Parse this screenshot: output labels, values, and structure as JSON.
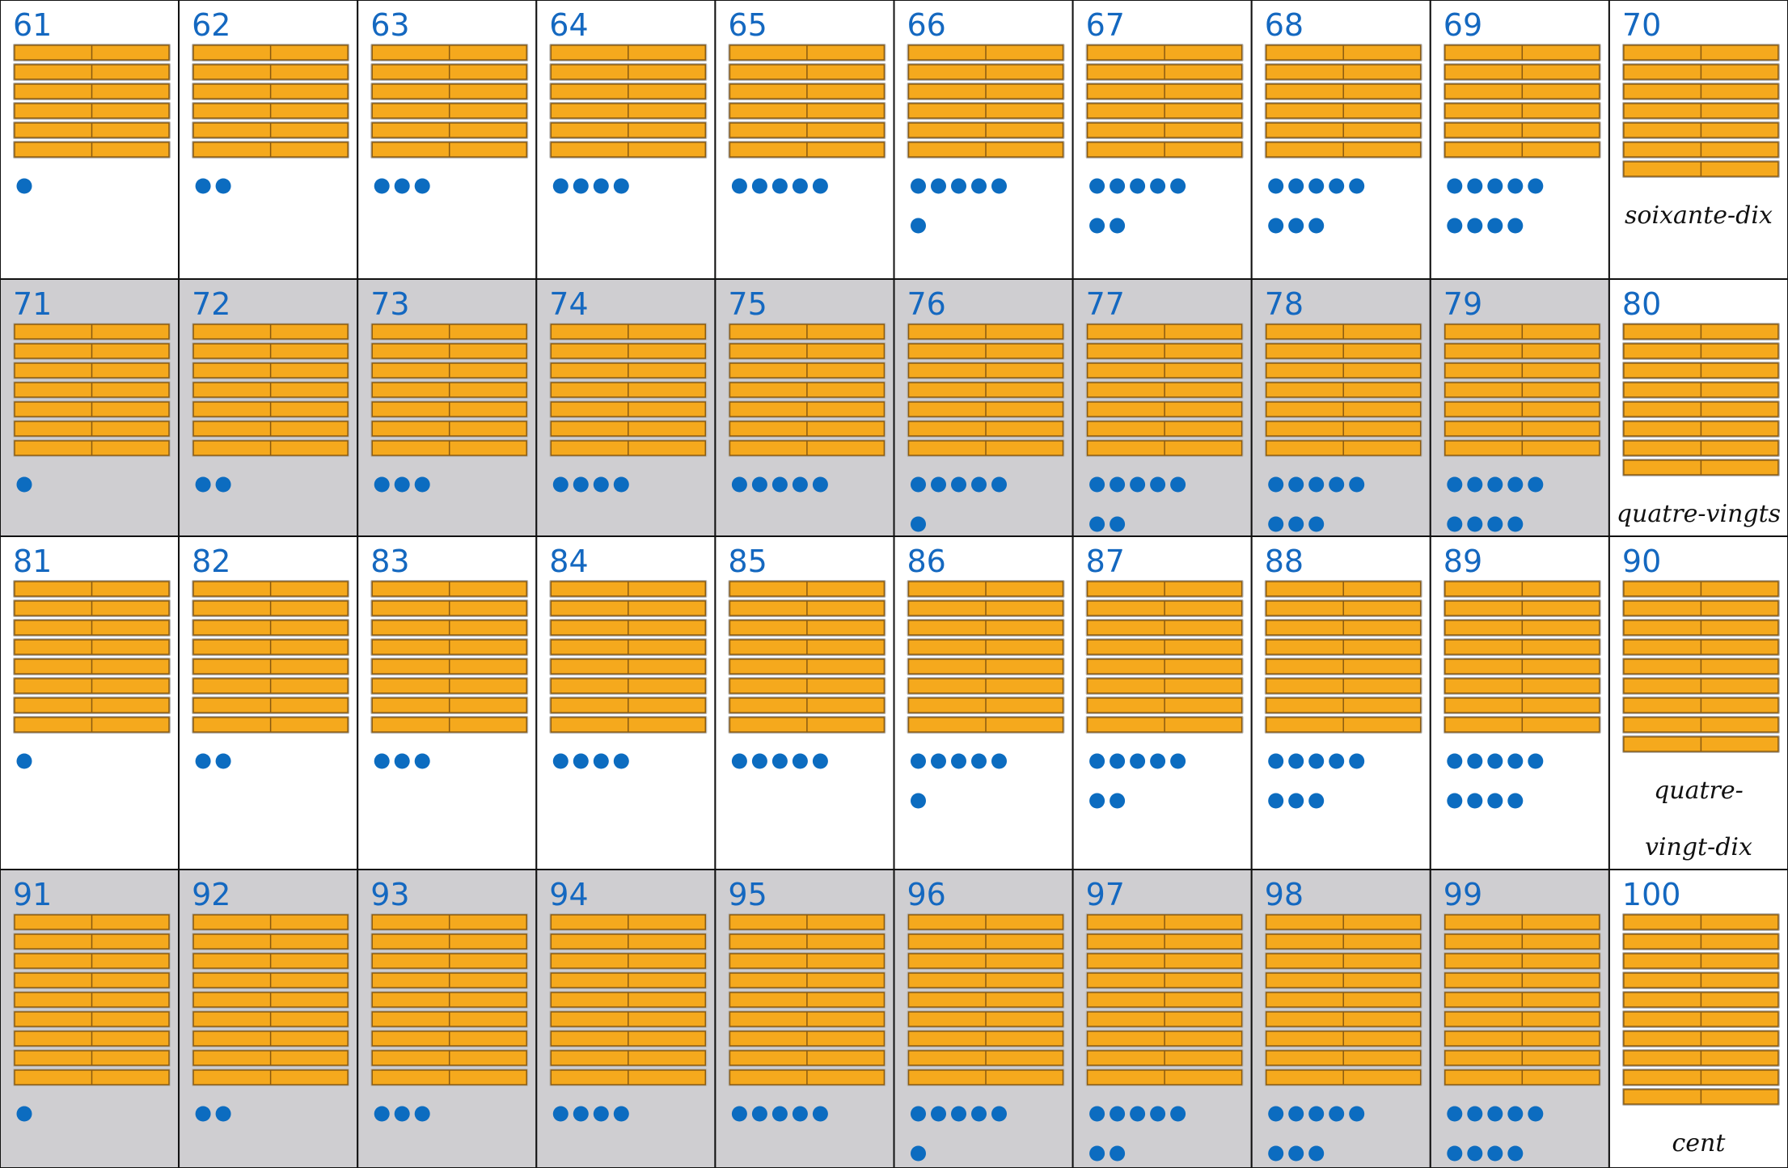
{
  "colors": {
    "number": "#1468c0",
    "bar": "#f5a91d",
    "bar_edge": "#8a5a10",
    "dot": "#0c6cc0",
    "shade": "#cfced1"
  },
  "cards": [
    {
      "number": 61,
      "tens": 6,
      "units": 1,
      "shaded": false
    },
    {
      "number": 62,
      "tens": 6,
      "units": 2,
      "shaded": false
    },
    {
      "number": 63,
      "tens": 6,
      "units": 3,
      "shaded": false
    },
    {
      "number": 64,
      "tens": 6,
      "units": 4,
      "shaded": false
    },
    {
      "number": 65,
      "tens": 6,
      "units": 5,
      "shaded": false
    },
    {
      "number": 66,
      "tens": 6,
      "units": 6,
      "shaded": false
    },
    {
      "number": 67,
      "tens": 6,
      "units": 7,
      "shaded": false
    },
    {
      "number": 68,
      "tens": 6,
      "units": 8,
      "shaded": false
    },
    {
      "number": 69,
      "tens": 6,
      "units": 9,
      "shaded": false
    },
    {
      "number": 70,
      "tens": 7,
      "units": 0,
      "shaded": false,
      "word_lines": [
        "soixante-dix"
      ]
    },
    {
      "number": 71,
      "tens": 7,
      "units": 1,
      "shaded": true
    },
    {
      "number": 72,
      "tens": 7,
      "units": 2,
      "shaded": true
    },
    {
      "number": 73,
      "tens": 7,
      "units": 3,
      "shaded": true
    },
    {
      "number": 74,
      "tens": 7,
      "units": 4,
      "shaded": true
    },
    {
      "number": 75,
      "tens": 7,
      "units": 5,
      "shaded": true
    },
    {
      "number": 76,
      "tens": 7,
      "units": 6,
      "shaded": true
    },
    {
      "number": 77,
      "tens": 7,
      "units": 7,
      "shaded": true
    },
    {
      "number": 78,
      "tens": 7,
      "units": 8,
      "shaded": true
    },
    {
      "number": 79,
      "tens": 7,
      "units": 9,
      "shaded": true
    },
    {
      "number": 80,
      "tens": 8,
      "units": 0,
      "shaded": false,
      "word_lines": [
        "quatre-vingts"
      ]
    },
    {
      "number": 81,
      "tens": 8,
      "units": 1,
      "shaded": false
    },
    {
      "number": 82,
      "tens": 8,
      "units": 2,
      "shaded": false
    },
    {
      "number": 83,
      "tens": 8,
      "units": 3,
      "shaded": false
    },
    {
      "number": 84,
      "tens": 8,
      "units": 4,
      "shaded": false
    },
    {
      "number": 85,
      "tens": 8,
      "units": 5,
      "shaded": false
    },
    {
      "number": 86,
      "tens": 8,
      "units": 6,
      "shaded": false
    },
    {
      "number": 87,
      "tens": 8,
      "units": 7,
      "shaded": false
    },
    {
      "number": 88,
      "tens": 8,
      "units": 8,
      "shaded": false
    },
    {
      "number": 89,
      "tens": 8,
      "units": 9,
      "shaded": false
    },
    {
      "number": 90,
      "tens": 9,
      "units": 0,
      "shaded": false,
      "word_lines": [
        "quatre-",
        "vingt-dix"
      ]
    },
    {
      "number": 91,
      "tens": 9,
      "units": 1,
      "shaded": true
    },
    {
      "number": 92,
      "tens": 9,
      "units": 2,
      "shaded": true
    },
    {
      "number": 93,
      "tens": 9,
      "units": 3,
      "shaded": true
    },
    {
      "number": 94,
      "tens": 9,
      "units": 4,
      "shaded": true
    },
    {
      "number": 95,
      "tens": 9,
      "units": 5,
      "shaded": true
    },
    {
      "number": 96,
      "tens": 9,
      "units": 6,
      "shaded": true
    },
    {
      "number": 97,
      "tens": 9,
      "units": 7,
      "shaded": true
    },
    {
      "number": 98,
      "tens": 9,
      "units": 8,
      "shaded": true
    },
    {
      "number": 99,
      "tens": 9,
      "units": 9,
      "shaded": true
    },
    {
      "number": 100,
      "tens": 10,
      "units": 0,
      "shaded": false,
      "word_lines": [
        "cent"
      ]
    }
  ]
}
